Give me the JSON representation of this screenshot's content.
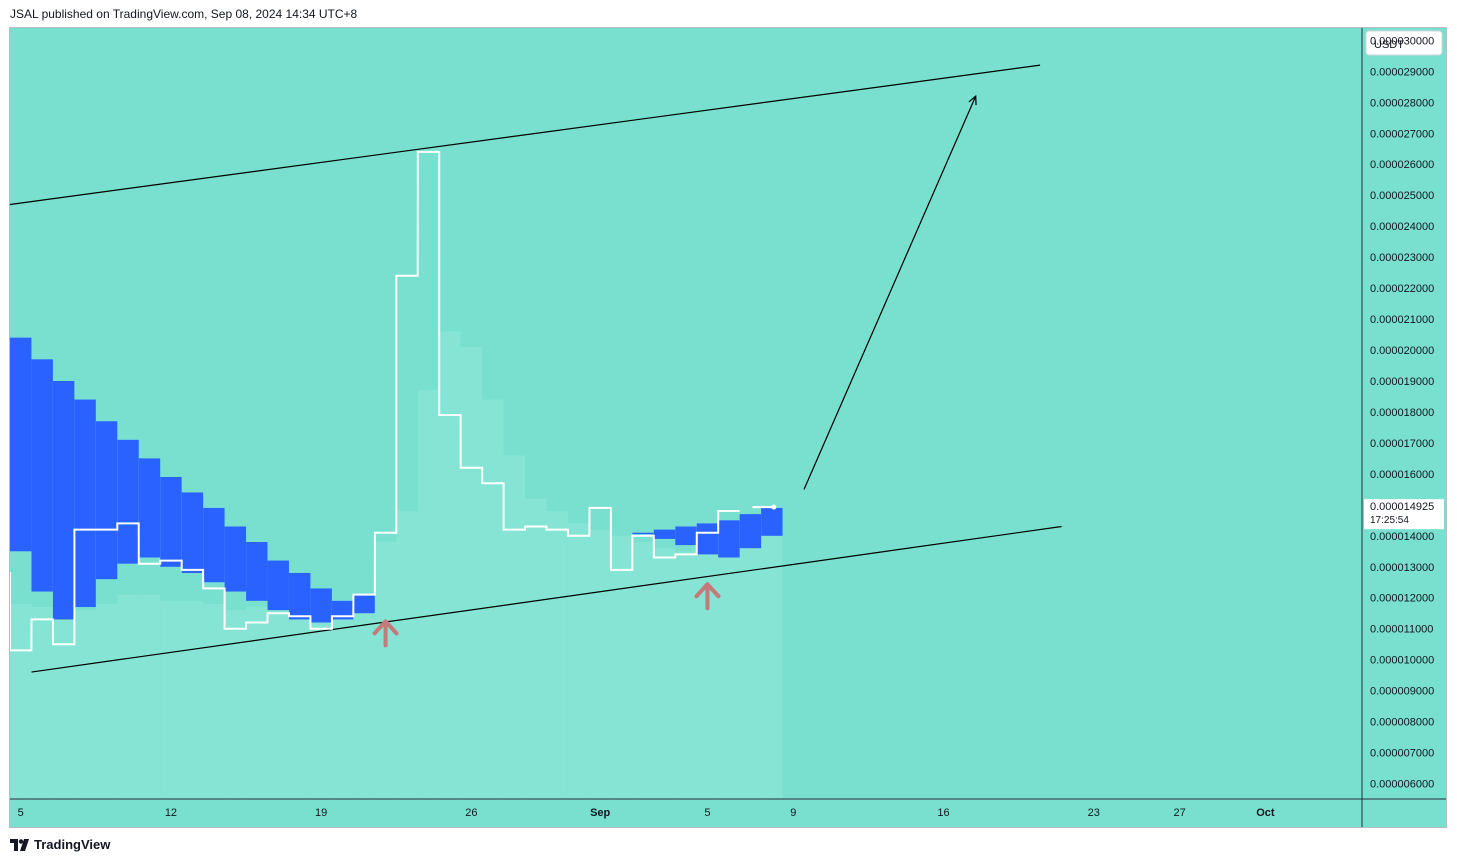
{
  "header": {
    "text": "JSAL published on TradingView.com, Sep 08, 2024 14:34 UTC+8"
  },
  "footer": {
    "brand": "TradingView",
    "logo_icon": "tradingview-logo-icon"
  },
  "colors": {
    "background": "#79dfcf",
    "candle_fill": "#2962ff",
    "line": "#ffffff",
    "trend": "#000000",
    "arrow_marker": "#c47a7a",
    "volume": "#8fe8d8"
  },
  "chart_data": {
    "type": "line",
    "title": "",
    "currency": "USDT",
    "ylim": [
      5.5e-06,
      3.04e-05
    ],
    "y_ticks": [
      "0.000030000",
      "0.000029000",
      "0.000028000",
      "0.000027000",
      "0.000026000",
      "0.000025000",
      "0.000024000",
      "0.000023000",
      "0.000022000",
      "0.000021000",
      "0.000020000",
      "0.000019000",
      "0.000018000",
      "0.000017000",
      "0.000016000",
      "0.000014000",
      "0.000013000",
      "0.000012000",
      "0.000011000",
      "0.000010000",
      "0.000009000",
      "0.000008000",
      "0.000007000",
      "0.000006000"
    ],
    "x_ticks": [
      {
        "label": "5",
        "bar": 1
      },
      {
        "label": "12",
        "bar": 8
      },
      {
        "label": "19",
        "bar": 15
      },
      {
        "label": "26",
        "bar": 22
      },
      {
        "label": "Sep",
        "bar": 28
      },
      {
        "label": "5",
        "bar": 33
      },
      {
        "label": "9",
        "bar": 37
      },
      {
        "label": "16",
        "bar": 44
      },
      {
        "label": "23",
        "bar": 51
      },
      {
        "label": "27",
        "bar": 55
      },
      {
        "label": "Oct",
        "bar": 59
      }
    ],
    "x_range_bars": [
      0.5,
      63.5
    ],
    "last_price": {
      "value": "0.000014925",
      "countdown": "17:25:54",
      "price": 1.4925e-05
    },
    "blue_boxes": [
      {
        "bar": 0,
        "top": 2.12e-05,
        "bottom": 1.51e-05
      },
      {
        "bar": 1,
        "top": 2.04e-05,
        "bottom": 1.35e-05
      },
      {
        "bar": 2,
        "top": 1.97e-05,
        "bottom": 1.22e-05
      },
      {
        "bar": 3,
        "top": 1.9e-05,
        "bottom": 1.13e-05
      },
      {
        "bar": 4,
        "top": 1.84e-05,
        "bottom": 1.17e-05
      },
      {
        "bar": 5,
        "top": 1.77e-05,
        "bottom": 1.26e-05
      },
      {
        "bar": 6,
        "top": 1.71e-05,
        "bottom": 1.31e-05
      },
      {
        "bar": 7,
        "top": 1.65e-05,
        "bottom": 1.33e-05
      },
      {
        "bar": 8,
        "top": 1.59e-05,
        "bottom": 1.3e-05
      },
      {
        "bar": 9,
        "top": 1.54e-05,
        "bottom": 1.28e-05
      },
      {
        "bar": 10,
        "top": 1.49e-05,
        "bottom": 1.25e-05
      },
      {
        "bar": 11,
        "top": 1.43e-05,
        "bottom": 1.22e-05
      },
      {
        "bar": 12,
        "top": 1.38e-05,
        "bottom": 1.19e-05
      },
      {
        "bar": 13,
        "top": 1.32e-05,
        "bottom": 1.16e-05
      },
      {
        "bar": 14,
        "top": 1.28e-05,
        "bottom": 1.13e-05
      },
      {
        "bar": 15,
        "top": 1.23e-05,
        "bottom": 1.12e-05
      },
      {
        "bar": 16,
        "top": 1.19e-05,
        "bottom": 1.13e-05
      },
      {
        "bar": 17,
        "top": 1.21e-05,
        "bottom": 1.15e-05
      },
      {
        "bar": 30,
        "top": 1.41e-05,
        "bottom": 1.41e-05
      },
      {
        "bar": 31,
        "top": 1.42e-05,
        "bottom": 1.39e-05
      },
      {
        "bar": 32,
        "top": 1.43e-05,
        "bottom": 1.37e-05
      },
      {
        "bar": 33,
        "top": 1.44e-05,
        "bottom": 1.34e-05
      },
      {
        "bar": 34,
        "top": 1.45e-05,
        "bottom": 1.33e-05
      },
      {
        "bar": 35,
        "top": 1.47e-05,
        "bottom": 1.36e-05
      },
      {
        "bar": 36,
        "top": 1.49e-05,
        "bottom": 1.4e-05
      }
    ],
    "white_line": [
      {
        "bar": 0,
        "value": 1.28e-05
      },
      {
        "bar": 1,
        "value": 1.03e-05
      },
      {
        "bar": 2,
        "value": 1.13e-05
      },
      {
        "bar": 3,
        "value": 1.05e-05
      },
      {
        "bar": 4,
        "value": 1.42e-05
      },
      {
        "bar": 5,
        "value": 1.42e-05
      },
      {
        "bar": 6,
        "value": 1.44e-05
      },
      {
        "bar": 7,
        "value": 1.31e-05
      },
      {
        "bar": 8,
        "value": 1.32e-05
      },
      {
        "bar": 9,
        "value": 1.29e-05
      },
      {
        "bar": 10,
        "value": 1.23e-05
      },
      {
        "bar": 11,
        "value": 1.1e-05
      },
      {
        "bar": 12,
        "value": 1.12e-05
      },
      {
        "bar": 13,
        "value": 1.15e-05
      },
      {
        "bar": 14,
        "value": 1.14e-05
      },
      {
        "bar": 15,
        "value": 1.1e-05
      },
      {
        "bar": 16,
        "value": 1.14e-05
      },
      {
        "bar": 17,
        "value": 1.21e-05
      },
      {
        "bar": 18,
        "value": 1.41e-05
      },
      {
        "bar": 19,
        "value": 2.24e-05
      },
      {
        "bar": 20,
        "value": 2.64e-05
      },
      {
        "bar": 21,
        "value": 1.79e-05
      },
      {
        "bar": 22,
        "value": 1.62e-05
      },
      {
        "bar": 23,
        "value": 1.57e-05
      },
      {
        "bar": 24,
        "value": 1.42e-05
      },
      {
        "bar": 25,
        "value": 1.43e-05
      },
      {
        "bar": 26,
        "value": 1.42e-05
      },
      {
        "bar": 27,
        "value": 1.4e-05
      },
      {
        "bar": 28,
        "value": 1.49e-05
      },
      {
        "bar": 29,
        "value": 1.29e-05
      },
      {
        "bar": 30,
        "value": 1.4e-05
      },
      {
        "bar": 31,
        "value": 1.33e-05
      },
      {
        "bar": 32,
        "value": 1.34e-05
      },
      {
        "bar": 33,
        "value": 1.41e-05
      },
      {
        "bar": 34,
        "value": 1.48e-05
      }
    ],
    "volume_bars": [
      {
        "bar": 0,
        "value": 1.2e-05
      },
      {
        "bar": 1,
        "value": 1.18e-05
      },
      {
        "bar": 2,
        "value": 1.17e-05
      },
      {
        "bar": 3,
        "value": 1.16e-05
      },
      {
        "bar": 4,
        "value": 1.16e-05
      },
      {
        "bar": 5,
        "value": 1.18e-05
      },
      {
        "bar": 6,
        "value": 1.21e-05
      },
      {
        "bar": 7,
        "value": 1.21e-05
      },
      {
        "bar": 8,
        "value": 1.19e-05
      },
      {
        "bar": 9,
        "value": 1.19e-05
      },
      {
        "bar": 10,
        "value": 1.18e-05
      },
      {
        "bar": 11,
        "value": 1.16e-05
      },
      {
        "bar": 12,
        "value": 1.17e-05
      },
      {
        "bar": 13,
        "value": 1.18e-05
      },
      {
        "bar": 14,
        "value": 1.17e-05
      },
      {
        "bar": 15,
        "value": 1.16e-05
      },
      {
        "bar": 16,
        "value": 1.17e-05
      },
      {
        "bar": 17,
        "value": 1.21e-05
      },
      {
        "bar": 18,
        "value": 1.38e-05
      },
      {
        "bar": 19,
        "value": 1.48e-05
      },
      {
        "bar": 20,
        "value": 1.87e-05
      },
      {
        "bar": 21,
        "value": 2.06e-05
      },
      {
        "bar": 22,
        "value": 2.01e-05
      },
      {
        "bar": 23,
        "value": 1.84e-05
      },
      {
        "bar": 24,
        "value": 1.66e-05
      },
      {
        "bar": 25,
        "value": 1.52e-05
      },
      {
        "bar": 26,
        "value": 1.48e-05
      },
      {
        "bar": 27,
        "value": 1.44e-05
      },
      {
        "bar": 28,
        "value": 1.42e-05
      },
      {
        "bar": 29,
        "value": 1.4e-05
      },
      {
        "bar": 30,
        "value": 1.38e-05
      },
      {
        "bar": 31,
        "value": 1.36e-05
      },
      {
        "bar": 32,
        "value": 1.35e-05
      },
      {
        "bar": 33,
        "value": 1.35e-05
      },
      {
        "bar": 34,
        "value": 1.36e-05
      },
      {
        "bar": 35,
        "value": 1.37e-05
      },
      {
        "bar": 36,
        "value": 1.4e-05
      }
    ],
    "upper_trendline": {
      "from": [
        0.5,
        2.47e-05
      ],
      "to": [
        48.5,
        2.92e-05
      ]
    },
    "lower_trendline": {
      "from": [
        1.5,
        9.6e-06
      ],
      "to": [
        49.5,
        1.43e-05
      ]
    },
    "projection_arrow": {
      "from": [
        37.5,
        1.55e-05
      ],
      "to": [
        45.5,
        2.82e-05
      ]
    },
    "arrow_markers": [
      {
        "bar": 18,
        "value": 1.13e-05
      },
      {
        "bar": 33,
        "value": 1.25e-05
      }
    ]
  }
}
